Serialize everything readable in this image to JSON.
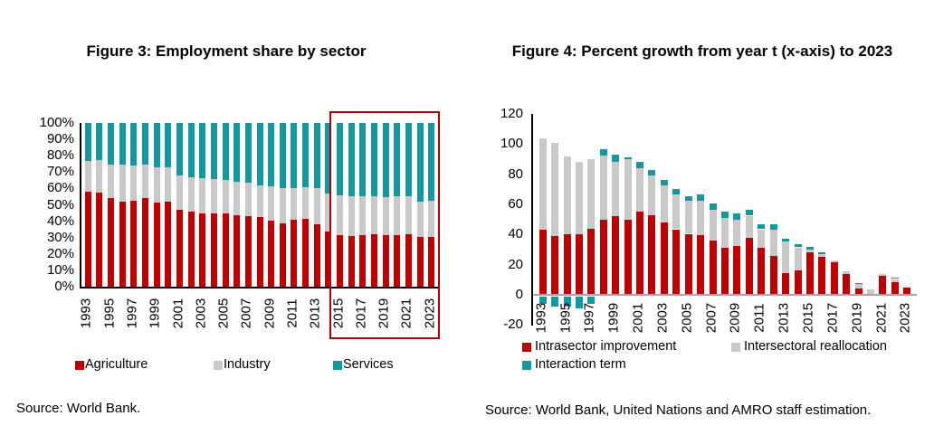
{
  "figure3": {
    "title": "Figure 3: Employment share by sector",
    "source": "Source: World Bank.",
    "legend": [
      {
        "label": "Agriculture",
        "color": "#C00000"
      },
      {
        "label": "Industry",
        "color": "#C9C9C9"
      },
      {
        "label": "Services",
        "color": "#12989E"
      }
    ],
    "highlight": {
      "from": 2015,
      "to": 2023,
      "color": "#B00000"
    }
  },
  "figure4": {
    "title": "Figure 4: Percent growth from year t (x-axis) to 2023",
    "source": "Source: World Bank, United Nations and AMRO staff estimation.",
    "legend": [
      {
        "label": "Intrasector improvement",
        "color": "#C00000"
      },
      {
        "label": "Intersectoral reallocation",
        "color": "#C9C9C9"
      },
      {
        "label": "Interaction term",
        "color": "#12989E"
      }
    ]
  },
  "chart_data": [
    {
      "id": "figure3",
      "type": "bar",
      "stacked": true,
      "unit": "%",
      "categories": [
        1993,
        1994,
        1995,
        1996,
        1997,
        1998,
        1999,
        2000,
        2001,
        2002,
        2003,
        2004,
        2005,
        2006,
        2007,
        2008,
        2009,
        2010,
        2011,
        2012,
        2013,
        2014,
        2015,
        2016,
        2017,
        2018,
        2019,
        2020,
        2021,
        2022,
        2023
      ],
      "series": [
        {
          "name": "Agriculture",
          "color": "#C00000",
          "values": [
            58,
            57.5,
            54,
            52,
            52.5,
            54,
            51.5,
            52,
            47,
            46,
            45,
            44.5,
            44.5,
            43.5,
            43,
            42.5,
            40.5,
            38.5,
            41,
            41.5,
            38,
            33.5,
            31.5,
            31,
            31.5,
            32,
            31.5,
            31.5,
            32,
            30.5,
            30.5
          ]
        },
        {
          "name": "Industry",
          "color": "#C9C9C9",
          "values": [
            19,
            20,
            20.5,
            22.5,
            21.5,
            20.5,
            21.5,
            21,
            21,
            21,
            21.5,
            21.5,
            20.5,
            20.5,
            20.5,
            19.5,
            21,
            22,
            19.5,
            19.5,
            22.5,
            23.5,
            24.5,
            24,
            23.5,
            23.5,
            23,
            23.5,
            23.5,
            21.5,
            22
          ]
        },
        {
          "name": "Services",
          "color": "#12989E",
          "values": [
            23,
            22.5,
            25.5,
            25.5,
            26,
            25.5,
            27,
            27,
            32,
            33,
            33.5,
            34,
            35,
            36,
            36.5,
            38,
            38.5,
            39.5,
            39.5,
            39,
            39.5,
            43,
            44,
            45,
            45,
            44.5,
            45.5,
            45,
            44.5,
            48,
            47.5
          ]
        }
      ],
      "ylim": [
        0,
        100
      ],
      "ytick_values": [
        0,
        10,
        20,
        30,
        40,
        50,
        60,
        70,
        80,
        90,
        100
      ],
      "ytick_labels": [
        "0%",
        "10%",
        "20%",
        "30%",
        "40%",
        "50%",
        "60%",
        "70%",
        "80%",
        "90%",
        "100%"
      ],
      "xtick_labels": [
        "1993",
        "1995",
        "1997",
        "1999",
        "2001",
        "2003",
        "2005",
        "2007",
        "2009",
        "2011",
        "2013",
        "2015",
        "2017",
        "2019",
        "2021",
        "2023"
      ],
      "xtick_step": 2,
      "grid": false,
      "legend_position": "bottom"
    },
    {
      "id": "figure4",
      "type": "bar",
      "stacked": true,
      "categories": [
        1993,
        1994,
        1995,
        1996,
        1997,
        1998,
        1999,
        2000,
        2001,
        2002,
        2003,
        2004,
        2005,
        2006,
        2007,
        2008,
        2009,
        2010,
        2011,
        2012,
        2013,
        2014,
        2015,
        2016,
        2017,
        2018,
        2019,
        2020,
        2021,
        2022,
        2023
      ],
      "series": [
        {
          "name": "Intrasector improvement",
          "color": "#C00000",
          "values": [
            43,
            39,
            40,
            40,
            44,
            50,
            52,
            50,
            55,
            53,
            48,
            43.5,
            40.5,
            39.5,
            36,
            31,
            32.5,
            38,
            31.5,
            26,
            14.5,
            16,
            28,
            25.5,
            21.5,
            14,
            4,
            0.5,
            12.5,
            8.5,
            5
          ]
        },
        {
          "name": "Intersectoral reallocation",
          "color": "#C9C9C9",
          "values": [
            61,
            62,
            52,
            48,
            46,
            42.5,
            36.5,
            40,
            29,
            26,
            24.5,
            23,
            22,
            23,
            20.5,
            20,
            17.5,
            14.5,
            12,
            17,
            21,
            15.5,
            2,
            1.5,
            1.5,
            1.5,
            3,
            3,
            1.5,
            2,
            0
          ]
        },
        {
          "name": "Interaction term",
          "color": "#12989E",
          "values": [
            -5,
            -6.5,
            -6.5,
            -7.5,
            -4.5,
            4,
            4.5,
            1.5,
            4.5,
            4,
            3.5,
            3.5,
            3,
            4,
            4,
            4,
            4,
            4,
            3.5,
            4,
            1.5,
            2,
            2,
            1,
            0,
            0,
            1,
            0,
            0,
            1,
            0
          ]
        }
      ],
      "ylim": [
        -20,
        120
      ],
      "ytick_values": [
        -20,
        0,
        20,
        40,
        60,
        80,
        100,
        120
      ],
      "ytick_labels": [
        "-20",
        "0",
        "20",
        "40",
        "60",
        "80",
        "100",
        "120"
      ],
      "xtick_labels": [
        "1993",
        "1995",
        "1997",
        "1999",
        "2001",
        "2003",
        "2005",
        "2007",
        "2009",
        "2011",
        "2013",
        "2015",
        "2017",
        "2019",
        "2021",
        "2023"
      ],
      "xtick_step": 2,
      "grid": false,
      "legend_position": "bottom"
    }
  ]
}
